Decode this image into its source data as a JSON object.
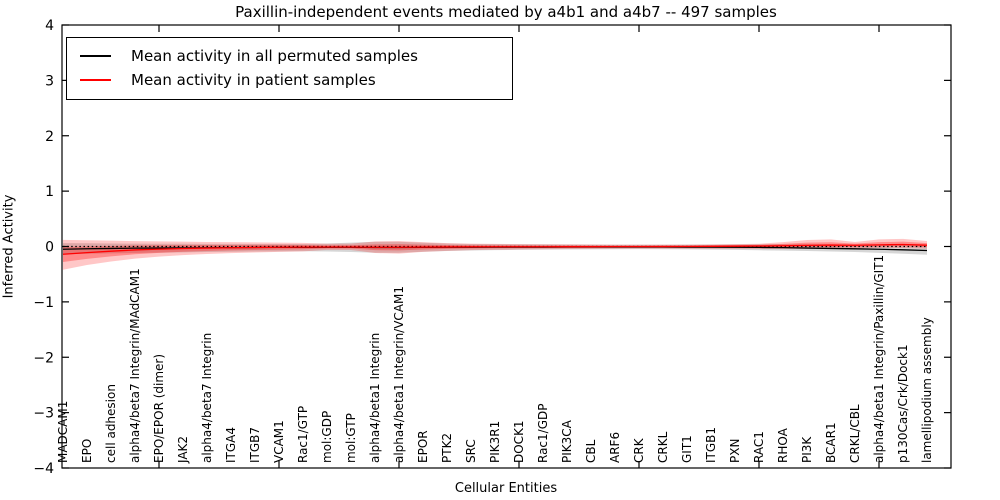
{
  "chart_data": {
    "type": "line",
    "title": "Paxillin-independent events mediated by a4b1 and a4b7 -- 497 samples",
    "xlabel": "Cellular Entities",
    "ylabel": "Inferred Activity",
    "ylim": [
      -4,
      4
    ],
    "yticks": [
      4,
      3,
      2,
      1,
      0,
      -1,
      -2,
      -3,
      -4
    ],
    "grid": false,
    "legend_position": "upper left",
    "categories": [
      "MADCAM1",
      "EPO",
      "cell adhesion",
      "alpha4/beta7 Integrin/MAdCAM1",
      "EPO/EPOR (dimer)",
      "JAK2",
      "alpha4/beta7 Integrin",
      "ITGA4",
      "ITGB7",
      "VCAM1",
      "Rac1/GTP",
      "mol:GDP",
      "mol:GTP",
      "alpha4/beta1 Integrin",
      "alpha4/beta1 Integrin/VCAM1",
      "EPOR",
      "PTK2",
      "SRC",
      "PIK3R1",
      "DOCK1",
      "Rac1/GDP",
      "PIK3CA",
      "CBL",
      "ARF6",
      "CRK",
      "CRKL",
      "GIT1",
      "ITGB1",
      "PXN",
      "RAC1",
      "RHOA",
      "PI3K",
      "BCAR1",
      "CRKL/CBL",
      "alpha4/beta1 Integrin/Paxillin/GIT1",
      "p130Cas/Crk/Dock1",
      "lamellipodium assembly"
    ],
    "x_major_tick_indices": [
      4,
      9,
      14,
      19,
      24,
      29,
      34
    ],
    "zero_line": {
      "y": 0,
      "style": "dotted",
      "color": "#000000"
    },
    "legend": {
      "entries": [
        {
          "label": "Mean activity in all permuted samples",
          "color": "#000000"
        },
        {
          "label": "Mean activity in patient samples",
          "color": "#ff0000"
        }
      ]
    },
    "series": [
      {
        "name": "Mean activity in all permuted samples",
        "color": "#000000",
        "values": [
          -0.05,
          -0.04,
          -0.035,
          -0.03,
          -0.028,
          -0.025,
          -0.022,
          -0.02,
          -0.018,
          -0.016,
          -0.015,
          -0.014,
          -0.014,
          -0.018,
          -0.018,
          -0.015,
          -0.013,
          -0.012,
          -0.011,
          -0.01,
          -0.01,
          -0.009,
          -0.009,
          -0.008,
          -0.008,
          -0.009,
          -0.01,
          -0.011,
          -0.013,
          -0.016,
          -0.02,
          -0.028,
          -0.035,
          -0.042,
          -0.05,
          -0.06,
          -0.072
        ]
      },
      {
        "name": "Mean activity in patient samples",
        "color": "#ff0000",
        "values": [
          -0.14,
          -0.11,
          -0.085,
          -0.062,
          -0.047,
          -0.036,
          -0.028,
          -0.022,
          -0.017,
          -0.013,
          -0.011,
          -0.009,
          -0.009,
          -0.013,
          -0.014,
          -0.01,
          -0.008,
          -0.006,
          -0.005,
          -0.004,
          -0.004,
          -0.003,
          -0.003,
          -0.002,
          -0.002,
          -0.001,
          0.0,
          0.003,
          0.006,
          0.009,
          0.013,
          0.02,
          0.026,
          0.022,
          0.03,
          0.036,
          0.024
        ]
      }
    ],
    "bands": [
      {
        "name": "permuted-samples-range",
        "color": "#999999",
        "opacity": 0.4,
        "upper": [
          0.06,
          0.058,
          0.055,
          0.052,
          0.05,
          0.05,
          0.048,
          0.047,
          0.046,
          0.045,
          0.045,
          0.055,
          0.07,
          0.085,
          0.085,
          0.068,
          0.055,
          0.045,
          0.042,
          0.04,
          0.038,
          0.036,
          0.034,
          0.032,
          0.032,
          0.032,
          0.033,
          0.035,
          0.038,
          0.04,
          0.04,
          0.04,
          0.038,
          0.032,
          0.028,
          0.022,
          0.02
        ],
        "lower": [
          -0.14,
          -0.132,
          -0.125,
          -0.118,
          -0.11,
          -0.105,
          -0.1,
          -0.095,
          -0.09,
          -0.088,
          -0.085,
          -0.09,
          -0.1,
          -0.112,
          -0.112,
          -0.095,
          -0.082,
          -0.072,
          -0.066,
          -0.06,
          -0.057,
          -0.054,
          -0.051,
          -0.049,
          -0.048,
          -0.049,
          -0.052,
          -0.056,
          -0.062,
          -0.068,
          -0.075,
          -0.082,
          -0.09,
          -0.1,
          -0.115,
          -0.13,
          -0.15
        ]
      },
      {
        "name": "patient-samples-range",
        "color": "#ff0000",
        "opacity": 0.22,
        "upper": [
          0.12,
          0.112,
          0.105,
          0.098,
          0.092,
          0.087,
          0.082,
          0.078,
          0.074,
          0.07,
          0.065,
          0.05,
          0.052,
          0.09,
          0.098,
          0.078,
          0.062,
          0.052,
          0.047,
          0.043,
          0.04,
          0.038,
          0.036,
          0.034,
          0.033,
          0.033,
          0.034,
          0.037,
          0.042,
          0.05,
          0.08,
          0.118,
          0.128,
          0.082,
          0.128,
          0.138,
          0.1
        ],
        "lower": [
          -0.42,
          -0.335,
          -0.27,
          -0.22,
          -0.182,
          -0.155,
          -0.135,
          -0.12,
          -0.108,
          -0.098,
          -0.088,
          -0.062,
          -0.064,
          -0.118,
          -0.128,
          -0.098,
          -0.078,
          -0.066,
          -0.059,
          -0.053,
          -0.049,
          -0.046,
          -0.043,
          -0.04,
          -0.039,
          -0.039,
          -0.04,
          -0.042,
          -0.044,
          -0.046,
          -0.045,
          -0.04,
          -0.038,
          -0.034,
          -0.028,
          -0.026,
          -0.04
        ]
      }
    ]
  }
}
